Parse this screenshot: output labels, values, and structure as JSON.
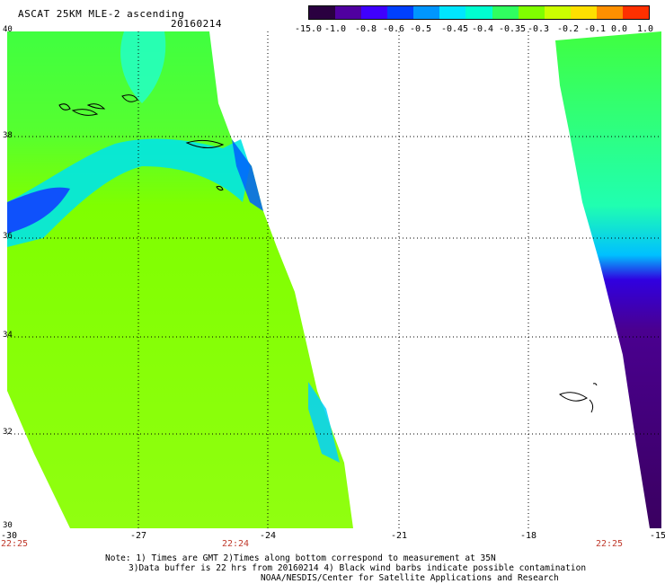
{
  "header": {
    "title": "ASCAT 25KM MLE-2 ascending",
    "date": "20160214"
  },
  "colorbar": {
    "labels": [
      "-15.0",
      "-1.0",
      "-0.8",
      "-0.6",
      "-0.5",
      "-0.45",
      "-0.4",
      "-0.35",
      "-0.3",
      "-0.2",
      "-0.1",
      "0.0",
      "1.0"
    ],
    "colors": [
      "#2a0040",
      "#5000a0",
      "#3f00ff",
      "#0040ff",
      "#0096ff",
      "#00e6ff",
      "#00ffd0",
      "#30ff60",
      "#80ff00",
      "#ccff00",
      "#ffe000",
      "#ff9000",
      "#ff3000"
    ]
  },
  "axes": {
    "lat_labels": [
      "40",
      "38",
      "36",
      "34",
      "32",
      "30"
    ],
    "lon_labels": [
      "-30",
      "-27",
      "-24",
      "-21",
      "-18",
      "-15"
    ],
    "time_labels": [
      "22:25",
      "22:24",
      "22:25"
    ]
  },
  "map": {
    "lat_range": [
      30,
      40
    ],
    "lon_range": [
      -30,
      -15
    ],
    "grid": "dotted"
  },
  "footer": {
    "note_line1": "Note: 1) Times are GMT 2)Times along bottom correspond to measurement at 35N",
    "note_line2": "3)Data buffer is 22 hrs from 20160214 4) Black wind barbs indicate possible contamination",
    "note_line3": "NOAA/NESDIS/Center for Satellite Applications and Research"
  }
}
